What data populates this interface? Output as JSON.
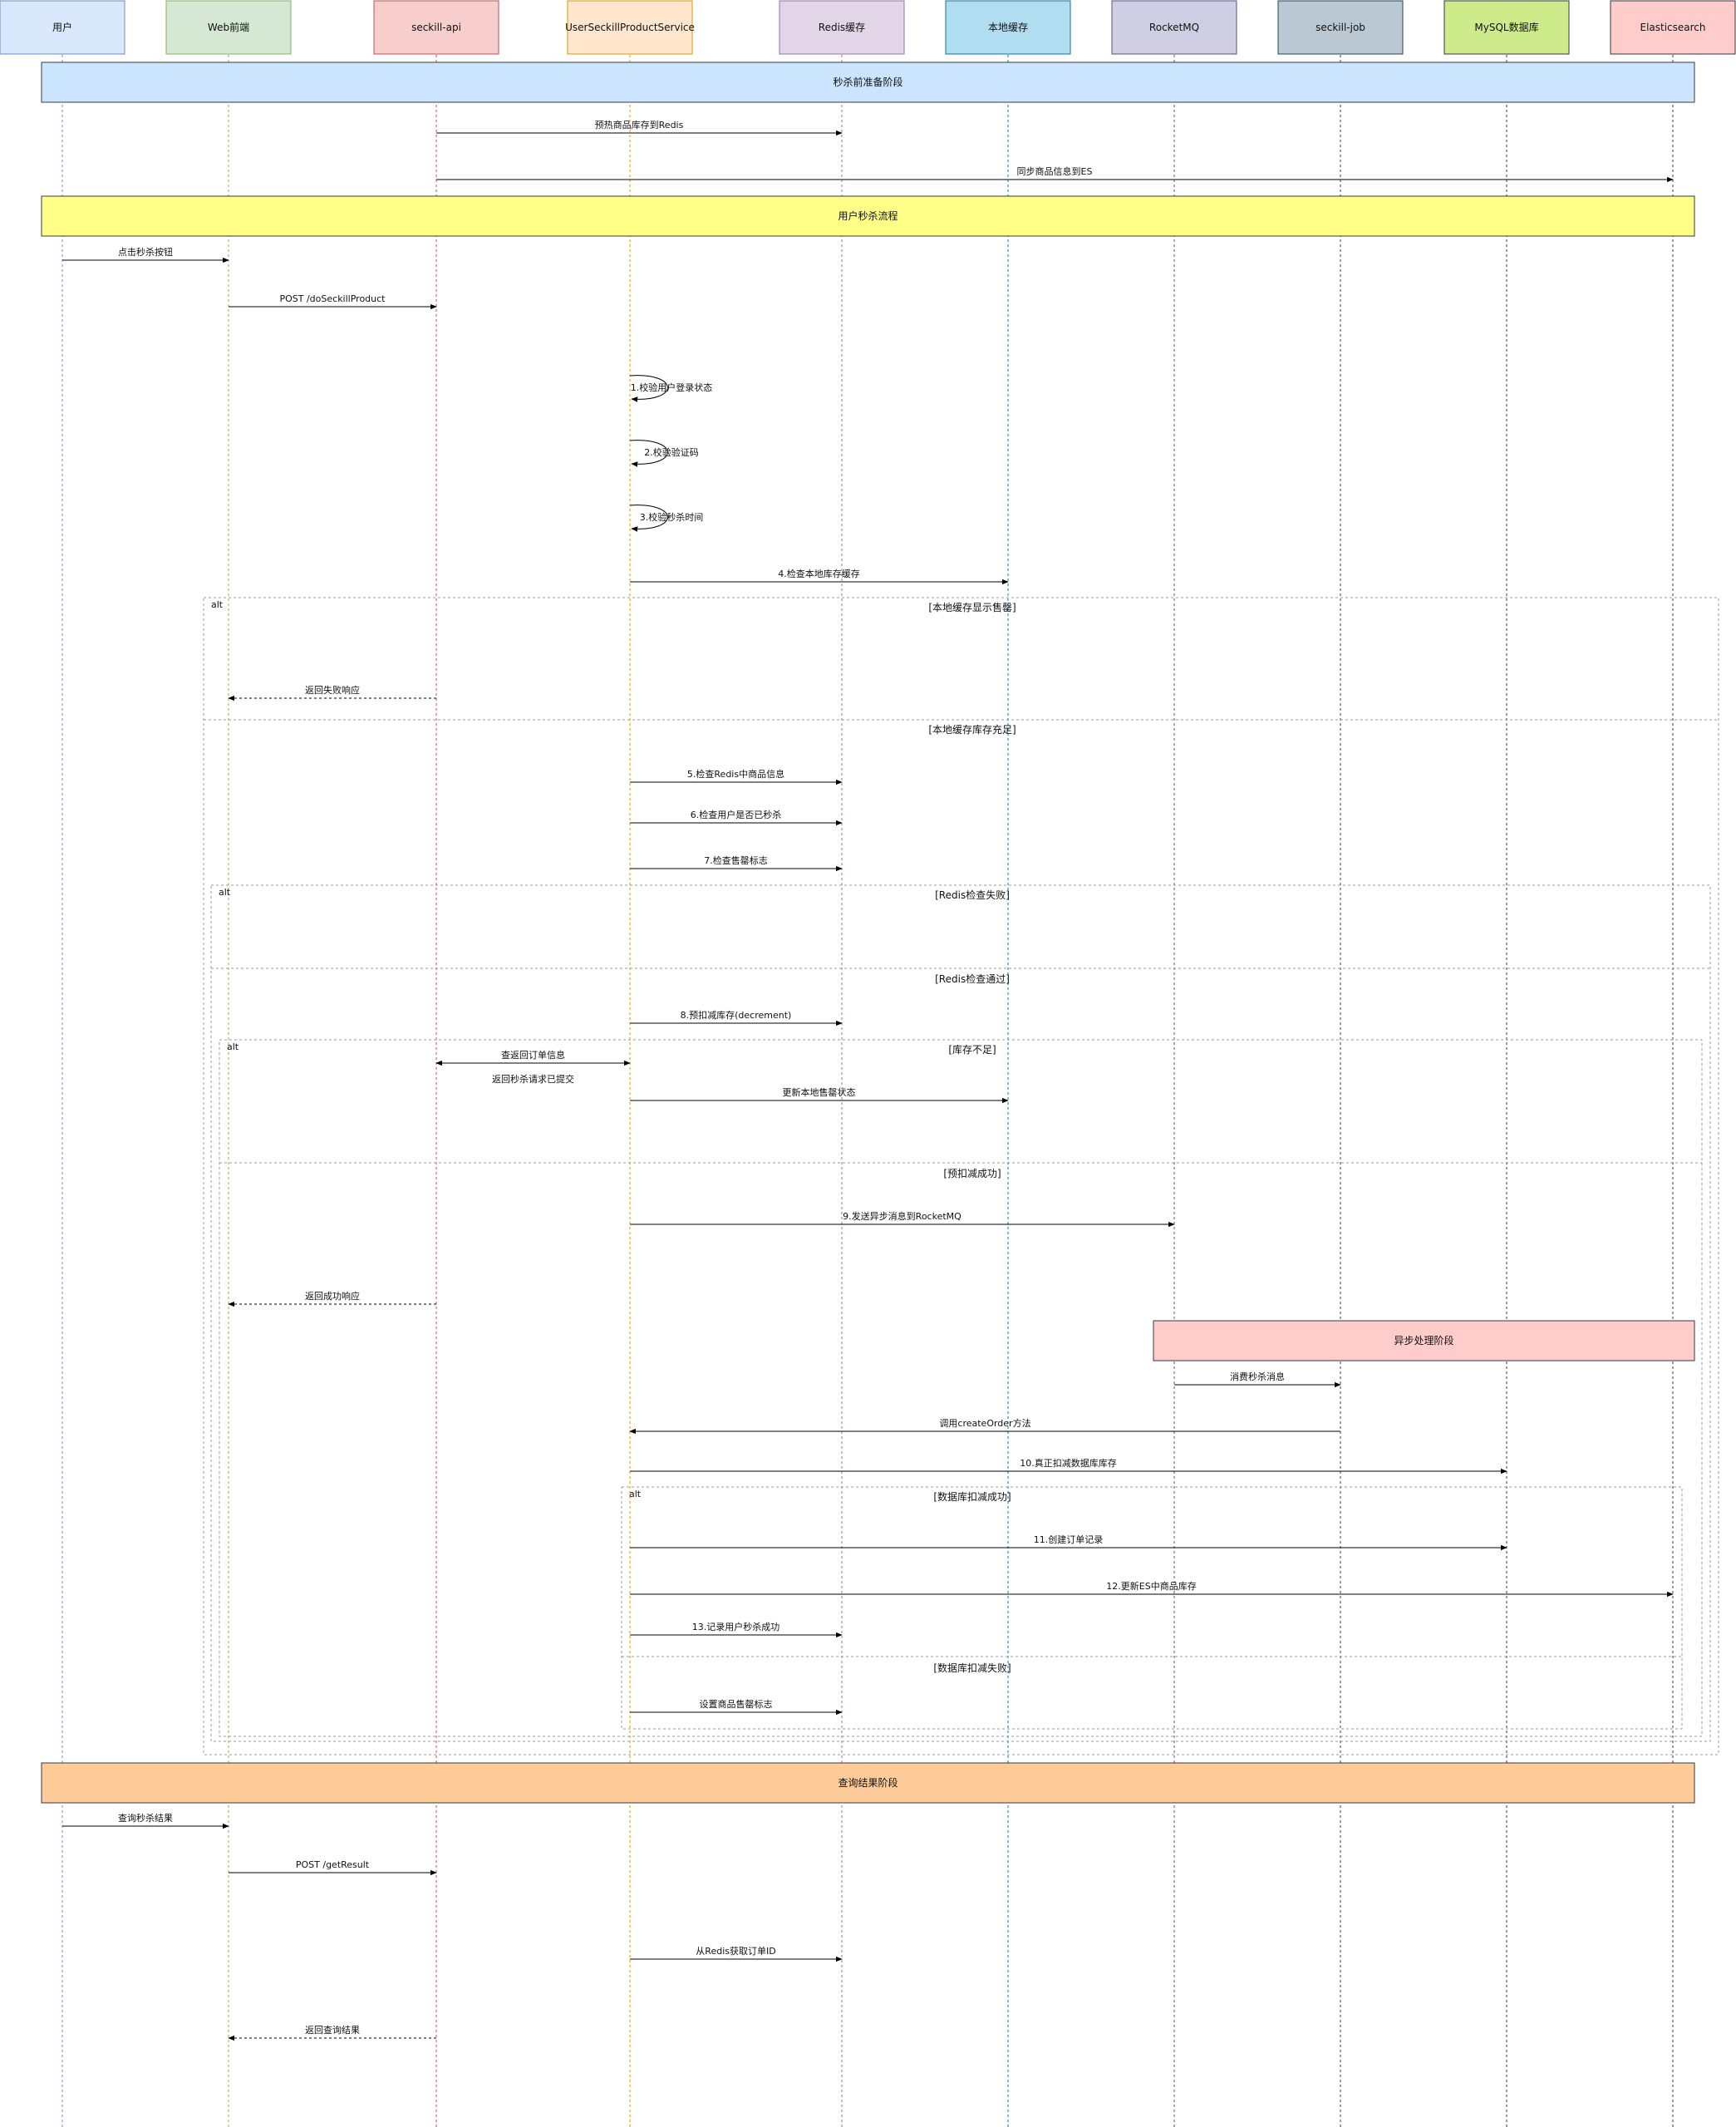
{
  "participants": [
    {
      "id": "user",
      "label": "用户",
      "color": "#dae8fc",
      "stroke": "#6c8ebf",
      "line": "#6c8ebf"
    },
    {
      "id": "web",
      "label": "Web前端",
      "color": "#d5e8d4",
      "stroke": "#82b366",
      "line": "#82b366"
    },
    {
      "id": "api",
      "label": "seckill-api",
      "color": "#f8cecc",
      "stroke": "#b85450",
      "line": "#b85450"
    },
    {
      "id": "svc",
      "label": "UserSeckillProductService",
      "color": "#ffe6cc",
      "stroke": "#d79b00",
      "line": "#d79b00"
    },
    {
      "id": "redis",
      "label": "Redis缓存",
      "color": "#e1d5e7",
      "stroke": "#9673a6",
      "line": "#9673a6"
    },
    {
      "id": "local",
      "label": "本地缓存",
      "color": "#b1ddf0",
      "stroke": "#10739e",
      "line": "#10739e"
    },
    {
      "id": "mq",
      "label": "RocketMQ",
      "color": "#d0cee2",
      "stroke": "#56517e",
      "line": "#56517e"
    },
    {
      "id": "job",
      "label": "seckill-job",
      "color": "#bac8d3",
      "stroke": "#23445d",
      "line": "#23445d"
    },
    {
      "id": "mysql",
      "label": "MySQL数据库",
      "color": "#cdeb8b",
      "stroke": "#36393d",
      "line": "#36393d"
    },
    {
      "id": "es",
      "label": "Elasticsearch",
      "color": "#ffcccc",
      "stroke": "#36393d",
      "line": "#36393d"
    }
  ],
  "banners": [
    {
      "id": "prep",
      "label": "秒杀前准备阶段",
      "color": "#cce5ff",
      "stroke": "#36393d"
    },
    {
      "id": "flow",
      "label": "用户秒杀流程",
      "color": "#ffff88",
      "stroke": "#36393d"
    },
    {
      "id": "async",
      "label": "异步处理阶段",
      "color": "#ffcccc",
      "stroke": "#36393d"
    },
    {
      "id": "query",
      "label": "查询结果阶段",
      "color": "#ffcc99",
      "stroke": "#36393d"
    }
  ],
  "messages": [
    {
      "label": "预热商品库存到Redis",
      "from": "api",
      "to": "redis",
      "kind": "sync"
    },
    {
      "label": "同步商品信息到ES",
      "from": "api",
      "to": "es",
      "kind": "sync"
    },
    {
      "label": "点击秒杀按钮",
      "from": "user",
      "to": "web",
      "kind": "sync"
    },
    {
      "label": "POST /doSeckillProduct",
      "from": "web",
      "to": "api",
      "kind": "sync"
    },
    {
      "label": "1.校验用户登录状态",
      "from": "svc",
      "to": "svc",
      "kind": "self"
    },
    {
      "label": "2.校验验证码",
      "from": "svc",
      "to": "svc",
      "kind": "self"
    },
    {
      "label": "3.校验秒杀时间",
      "from": "svc",
      "to": "svc",
      "kind": "self"
    },
    {
      "label": "4.检查本地库存缓存",
      "from": "svc",
      "to": "local",
      "kind": "sync"
    },
    {
      "label": "返回失败响应",
      "from": "api",
      "to": "web",
      "kind": "return"
    },
    {
      "label": "5.检查Redis中商品信息",
      "from": "svc",
      "to": "redis",
      "kind": "sync"
    },
    {
      "label": "6.检查用户是否已秒杀",
      "from": "svc",
      "to": "redis",
      "kind": "sync"
    },
    {
      "label": "7.检查售罄标志",
      "from": "svc",
      "to": "redis",
      "kind": "sync"
    },
    {
      "label": "8.预扣减库存(decrement)",
      "from": "svc",
      "to": "redis",
      "kind": "sync"
    },
    {
      "label": "查返回订单信息",
      "from": "api",
      "to": "svc",
      "kind": "both"
    },
    {
      "label": "返回秒杀请求已提交",
      "from": "api",
      "to": "svc",
      "kind": "text"
    },
    {
      "label": "更新本地售罄状态",
      "from": "svc",
      "to": "local",
      "kind": "sync"
    },
    {
      "label": "9.发送异步消息到RocketMQ",
      "from": "svc",
      "to": "mq",
      "kind": "sync"
    },
    {
      "label": "返回成功响应",
      "from": "api",
      "to": "web",
      "kind": "return"
    },
    {
      "label": "消费秒杀消息",
      "from": "mq",
      "to": "job",
      "kind": "sync"
    },
    {
      "label": "调用createOrder方法",
      "from": "job",
      "to": "svc",
      "kind": "sync"
    },
    {
      "label": "10.真正扣减数据库库存",
      "from": "svc",
      "to": "mysql",
      "kind": "sync"
    },
    {
      "label": "11.创建订单记录",
      "from": "svc",
      "to": "mysql",
      "kind": "sync"
    },
    {
      "label": "12.更新ES中商品库存",
      "from": "svc",
      "to": "es",
      "kind": "sync"
    },
    {
      "label": "13.记录用户秒杀成功",
      "from": "svc",
      "to": "redis",
      "kind": "sync"
    },
    {
      "label": "设置商品售罄标志",
      "from": "svc",
      "to": "redis",
      "kind": "sync"
    },
    {
      "label": "查询秒杀结果",
      "from": "user",
      "to": "web",
      "kind": "sync"
    },
    {
      "label": "POST /getResult",
      "from": "web",
      "to": "api",
      "kind": "sync"
    },
    {
      "label": "从Redis获取订单ID",
      "from": "svc",
      "to": "redis",
      "kind": "sync"
    },
    {
      "label": "返回查询结果",
      "from": "api",
      "to": "web",
      "kind": "return"
    }
  ],
  "frames": [
    {
      "id": "alt-local",
      "tag": "alt",
      "guards": [
        "[本地缓存显示售罄]",
        "[本地缓存库存充足]"
      ]
    },
    {
      "id": "alt-redis",
      "tag": "alt",
      "guards": [
        "[Redis检查失败]",
        "[Redis检查通过]"
      ]
    },
    {
      "id": "alt-stock",
      "tag": "alt",
      "guards": [
        "[库存不足]",
        "[预扣减成功]"
      ]
    },
    {
      "id": "alt-db",
      "tag": "alt",
      "guards": [
        "[数据库扣减成功]",
        "[数据库扣减失败]"
      ]
    }
  ]
}
